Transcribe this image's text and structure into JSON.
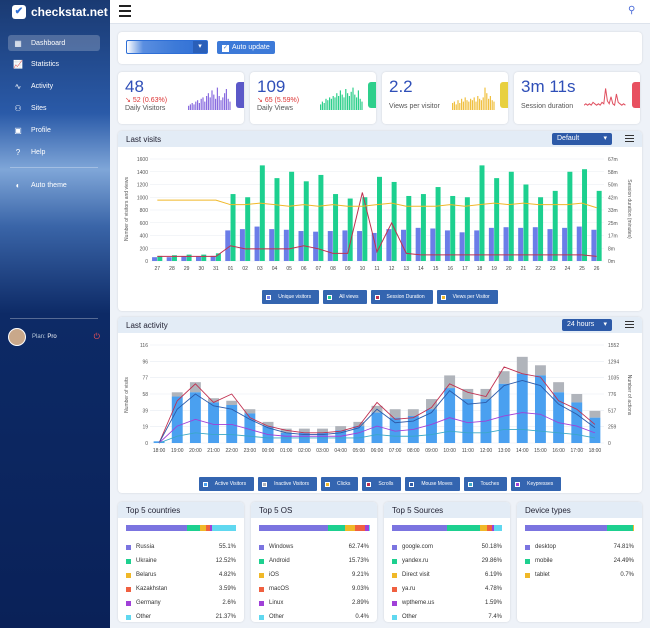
{
  "app": {
    "name": "checkstat.net"
  },
  "sidebar": {
    "items": [
      {
        "label": "Dashboard",
        "icon": "dashboard-icon"
      },
      {
        "label": "Statistics",
        "icon": "chart-icon"
      },
      {
        "label": "Activity",
        "icon": "pulse-icon"
      },
      {
        "label": "Sites",
        "icon": "sites-icon"
      },
      {
        "label": "Profile",
        "icon": "profile-icon"
      },
      {
        "label": "Help",
        "icon": "help-icon"
      },
      {
        "label": "Auto theme",
        "icon": "theme-icon"
      }
    ],
    "user": {
      "plan_label": "Plan:",
      "plan_value": "Pro"
    }
  },
  "toolbar": {
    "auto_update": "Auto update"
  },
  "stats": [
    {
      "value": "48",
      "change": "52 (0.63%)",
      "label": "Daily Visitors",
      "color": "#8a6de0",
      "tab": "#5b58c8"
    },
    {
      "value": "109",
      "change": "65 (5.59%)",
      "label": "Daily Views",
      "color": "#2ecf8c",
      "tab": "#2ecf8c"
    },
    {
      "value": "2.2",
      "change": "",
      "label": "Views per visitor",
      "color": "#f0c040",
      "tab": "#e8d040"
    },
    {
      "value": "3m 11s",
      "change": "",
      "label": "Session duration",
      "color": "#e05060",
      "tab": "#e85060"
    }
  ],
  "last_visits": {
    "title": "Last visits",
    "select": "Default",
    "ylabel": "Number of visitors and views",
    "y2label": "Session duration (minutes)",
    "legend": [
      "Unique visitors",
      "All views",
      "Session Duration",
      "Views per Visitor"
    ],
    "yticks": [
      "1600",
      "1400",
      "1200",
      "1000",
      "800",
      "600",
      "400",
      "200",
      "0"
    ],
    "y2ticks": [
      "67m",
      "58m",
      "50m",
      "42m",
      "33m",
      "25m",
      "17m",
      "8m",
      "0m"
    ]
  },
  "last_activity": {
    "title": "Last activity",
    "select": "24 hours",
    "ylabel": "Number of visits",
    "y2label": "Number of actions",
    "legend": [
      "Active Visitors",
      "Inactive Visitors",
      "Clicks",
      "Scrolls",
      "Mouse Moves",
      "Touches",
      "Keypresses"
    ],
    "yticks": [
      "116",
      "96",
      "77",
      "58",
      "39",
      "19",
      "0"
    ],
    "y2ticks": [
      "1552",
      "1294",
      "1035",
      "776",
      "517",
      "259",
      "0"
    ]
  },
  "chart_data": [
    {
      "type": "bar",
      "title": "Last visits",
      "categories": [
        "27",
        "28",
        "29",
        "30",
        "31",
        "01",
        "02",
        "03",
        "04",
        "05",
        "06",
        "07",
        "08",
        "09",
        "10",
        "11",
        "12",
        "13",
        "14",
        "15",
        "16",
        "17",
        "18",
        "19",
        "20",
        "21",
        "22",
        "23",
        "24",
        "25",
        "26"
      ],
      "series": [
        {
          "name": "Unique visitors",
          "values": [
            60,
            60,
            70,
            70,
            80,
            480,
            500,
            540,
            500,
            490,
            470,
            460,
            470,
            480,
            470,
            440,
            500,
            490,
            520,
            510,
            480,
            450,
            480,
            520,
            530,
            520,
            530,
            500,
            520,
            540,
            490
          ]
        },
        {
          "name": "All views",
          "values": [
            80,
            90,
            100,
            100,
            120,
            1050,
            1000,
            1500,
            1300,
            1400,
            1250,
            1350,
            1050,
            980,
            1000,
            1320,
            1240,
            1020,
            1050,
            1160,
            1020,
            1000,
            1500,
            1300,
            1400,
            1200,
            1000,
            1100,
            1400,
            1440,
            1100
          ]
        },
        {
          "name": "Session Duration",
          "values": [
            3,
            3,
            3,
            3,
            3,
            10,
            8,
            8,
            8,
            8,
            10,
            8,
            5,
            5,
            45,
            6,
            25,
            5,
            4,
            4,
            4,
            4,
            4,
            4,
            4,
            4,
            4,
            4,
            4,
            4,
            3
          ]
        },
        {
          "name": "Views per Visitor",
          "values": [
            40,
            40,
            40,
            40,
            40,
            37,
            37,
            38,
            37,
            36,
            37,
            36,
            37,
            36,
            36,
            37,
            38,
            36,
            36,
            36,
            37,
            36,
            37,
            38,
            37,
            38,
            37,
            37,
            37,
            38,
            35
          ]
        }
      ]
    },
    {
      "type": "bar",
      "title": "Last activity",
      "categories": [
        "18:00",
        "19:00",
        "20:00",
        "21:00",
        "22:00",
        "23:00",
        "00:00",
        "01:00",
        "02:00",
        "03:00",
        "04:00",
        "05:00",
        "06:00",
        "07:00",
        "08:00",
        "09:00",
        "10:00",
        "11:00",
        "12:00",
        "13:00",
        "14:00",
        "15:00",
        "16:00",
        "17:00",
        "18:00"
      ],
      "series": [
        {
          "name": "Active Visitors",
          "values": [
            2,
            55,
            60,
            48,
            45,
            35,
            20,
            12,
            12,
            12,
            15,
            20,
            36,
            30,
            32,
            40,
            65,
            52,
            52,
            70,
            82,
            80,
            60,
            48,
            30
          ]
        },
        {
          "name": "Inactive Visitors",
          "values": [
            0,
            5,
            12,
            5,
            5,
            5,
            5,
            5,
            5,
            5,
            5,
            5,
            8,
            10,
            8,
            12,
            15,
            12,
            12,
            15,
            20,
            12,
            12,
            10,
            8
          ]
        }
      ]
    },
    {
      "type": "bar",
      "title": "Top 5 countries",
      "categories": [
        "Russia",
        "Ukraine",
        "Belarus",
        "Kazakhstan",
        "Germany",
        "Other"
      ],
      "values": [
        55.1,
        12.52,
        4.82,
        3.59,
        2.6,
        21.37
      ]
    },
    {
      "type": "bar",
      "title": "Top 5 OS",
      "categories": [
        "Windows",
        "Android",
        "iOS",
        "macOS",
        "Linux",
        "Other"
      ],
      "values": [
        62.74,
        15.73,
        9.21,
        9.03,
        2.89,
        0.4
      ]
    },
    {
      "type": "bar",
      "title": "Top 5 Sources",
      "categories": [
        "google.com",
        "yandex.ru",
        "Direct visit",
        "ya.ru",
        "wptheme.us",
        "Other"
      ],
      "values": [
        50.18,
        29.86,
        6.19,
        4.78,
        1.59,
        7.4
      ]
    },
    {
      "type": "bar",
      "title": "Device types",
      "categories": [
        "desktop",
        "mobile",
        "tablet"
      ],
      "values": [
        74.81,
        24.49,
        0.7
      ]
    }
  ],
  "bottom": [
    {
      "title": "Top 5 countries",
      "rows": [
        [
          "Russia",
          "55.1%"
        ],
        [
          "Ukraine",
          "12.52%"
        ],
        [
          "Belarus",
          "4.82%"
        ],
        [
          "Kazakhstan",
          "3.59%"
        ],
        [
          "Germany",
          "2.6%"
        ],
        [
          "Other",
          "21.37%"
        ]
      ]
    },
    {
      "title": "Top 5 OS",
      "rows": [
        [
          "Windows",
          "62.74%"
        ],
        [
          "Android",
          "15.73%"
        ],
        [
          "iOS",
          "9.21%"
        ],
        [
          "macOS",
          "9.03%"
        ],
        [
          "Linux",
          "2.89%"
        ],
        [
          "Other",
          "0.4%"
        ]
      ]
    },
    {
      "title": "Top 5 Sources",
      "rows": [
        [
          "google.com",
          "50.18%"
        ],
        [
          "yandex.ru",
          "29.86%"
        ],
        [
          "Direct visit",
          "6.19%"
        ],
        [
          "ya.ru",
          "4.78%"
        ],
        [
          "wptheme.us",
          "1.59%"
        ],
        [
          "Other",
          "7.4%"
        ]
      ]
    },
    {
      "title": "Device types",
      "rows": [
        [
          "desktop",
          "74.81%"
        ],
        [
          "mobile",
          "24.49%"
        ],
        [
          "tablet",
          "0.7%"
        ]
      ]
    }
  ],
  "palette": [
    "#7b74e0",
    "#1dd08f",
    "#f0b828",
    "#f06040",
    "#a040d8",
    "#60d8f0"
  ]
}
